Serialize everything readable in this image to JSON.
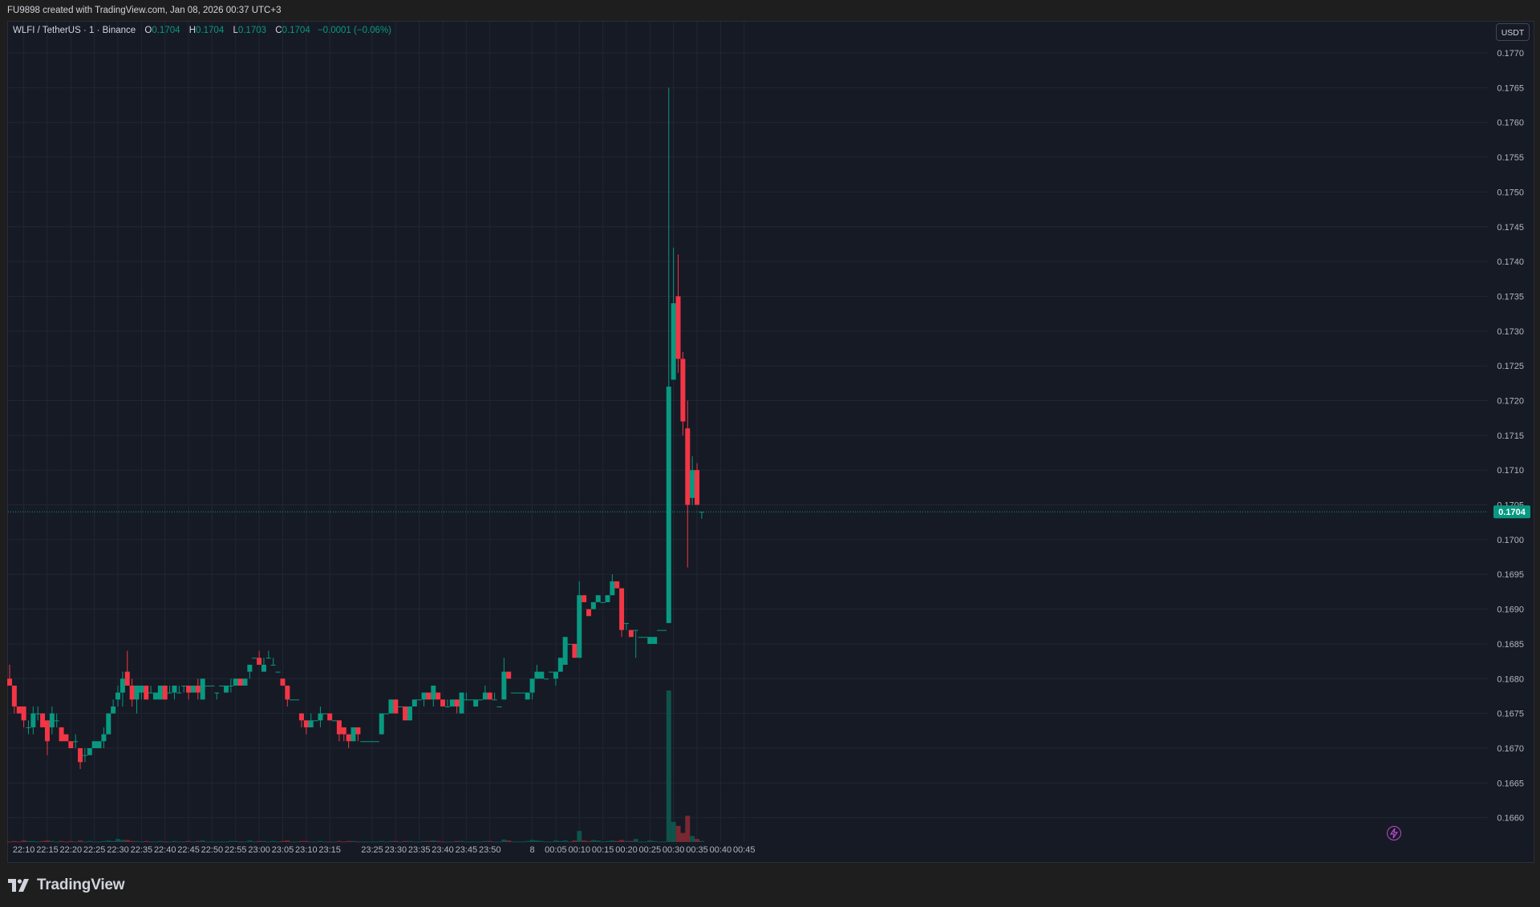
{
  "header": {
    "credit": "FU9898 created with TradingView.com, Jan 08, 2026 00:37 UTC+3"
  },
  "legend": {
    "symbol": "WLFI / TetherUS · 1 · Binance",
    "o_label": "O",
    "o_value": "0.1704",
    "h_label": "H",
    "h_value": "0.1704",
    "l_label": "L",
    "l_value": "0.1703",
    "c_label": "C",
    "c_value": "0.1704",
    "change": "−0.0001 (−0.06%)"
  },
  "currency_badge": "USDT",
  "brand": {
    "name": "TradingView",
    "logo_icon": "tradingview-logo-icon"
  },
  "colors": {
    "up": "#089981",
    "down": "#f23645",
    "background": "#161a25",
    "grid": "#222634",
    "axis_text": "#b2b5be"
  },
  "chart_data": {
    "type": "candlestick",
    "symbol": "WLFI / TetherUS",
    "interval": "1",
    "exchange": "Binance",
    "last_price": 0.1704,
    "last_price_label": "0.1704",
    "ylim": [
      0.16565,
      0.17745
    ],
    "y_ticks": [
      "0.1660",
      "0.1665",
      "0.1670",
      "0.1675",
      "0.1680",
      "0.1685",
      "0.1690",
      "0.1695",
      "0.1700",
      "0.1705",
      "0.1710",
      "0.1715",
      "0.1720",
      "0.1725",
      "0.1730",
      "0.1735",
      "0.1740",
      "0.1745",
      "0.1750",
      "0.1755",
      "0.1760",
      "0.1765",
      "0.1770"
    ],
    "x_ticks": [
      {
        "i": 3,
        "label": "22:10"
      },
      {
        "i": 8,
        "label": "22:15"
      },
      {
        "i": 13,
        "label": "22:20"
      },
      {
        "i": 18,
        "label": "22:25"
      },
      {
        "i": 23,
        "label": "22:30"
      },
      {
        "i": 28,
        "label": "22:35"
      },
      {
        "i": 33,
        "label": "22:40"
      },
      {
        "i": 38,
        "label": "22:45"
      },
      {
        "i": 43,
        "label": "22:50"
      },
      {
        "i": 48,
        "label": "22:55"
      },
      {
        "i": 53,
        "label": "23:00"
      },
      {
        "i": 58,
        "label": "23:05"
      },
      {
        "i": 63,
        "label": "23:10"
      },
      {
        "i": 68,
        "label": "23:15"
      },
      {
        "i": 77,
        "label": "23:25"
      },
      {
        "i": 82,
        "label": "23:30"
      },
      {
        "i": 87,
        "label": "23:35"
      },
      {
        "i": 92,
        "label": "23:40"
      },
      {
        "i": 97,
        "label": "23:45"
      },
      {
        "i": 102,
        "label": "23:50"
      },
      {
        "i": 111,
        "label": "8"
      },
      {
        "i": 116,
        "label": "00:05"
      },
      {
        "i": 121,
        "label": "00:10"
      },
      {
        "i": 126,
        "label": "00:15"
      },
      {
        "i": 131,
        "label": "00:20"
      },
      {
        "i": 136,
        "label": "00:25"
      },
      {
        "i": 141,
        "label": "00:30"
      },
      {
        "i": 146,
        "label": "00:35"
      },
      {
        "i": 151,
        "label": "00:40"
      },
      {
        "i": 156,
        "label": "00:45"
      }
    ],
    "candles": [
      [
        0.168,
        0.1682,
        0.1679,
        0.1679,
        0.1
      ],
      [
        0.1679,
        0.1679,
        0.1675,
        0.1676,
        0.2
      ],
      [
        0.1676,
        0.1676,
        0.1675,
        0.1675,
        0.1
      ],
      [
        0.1676,
        0.1676,
        0.1673,
        0.1674,
        0.3
      ],
      [
        0.1673,
        0.1674,
        0.1672,
        0.1673,
        0.2
      ],
      [
        0.1673,
        0.1676,
        0.1672,
        0.1675,
        0.2
      ],
      [
        0.1675,
        0.1676,
        0.1674,
        0.1675,
        0.1
      ],
      [
        0.1675,
        0.1675,
        0.1673,
        0.1673,
        0.2
      ],
      [
        0.1674,
        0.1674,
        0.1669,
        0.1671,
        0.3
      ],
      [
        0.1673,
        0.1676,
        0.1672,
        0.1675,
        0.2
      ],
      [
        0.1674,
        0.1675,
        0.1673,
        0.1674,
        0.1
      ],
      [
        0.1673,
        0.1673,
        0.1671,
        0.1671,
        0.2
      ],
      [
        0.1672,
        0.1672,
        0.1671,
        0.1671,
        0.1
      ],
      [
        0.1671,
        0.1671,
        0.167,
        0.167,
        0.2
      ],
      [
        0.1671,
        0.1672,
        0.167,
        0.1671,
        0.1
      ],
      [
        0.167,
        0.167,
        0.1667,
        0.1668,
        0.3
      ],
      [
        0.1669,
        0.167,
        0.1668,
        0.1669,
        0.1
      ],
      [
        0.1669,
        0.167,
        0.1669,
        0.167,
        0.2
      ],
      [
        0.167,
        0.1671,
        0.167,
        0.1671,
        0.1
      ],
      [
        0.167,
        0.1671,
        0.167,
        0.1671,
        0.1
      ],
      [
        0.1671,
        0.1673,
        0.167,
        0.1672,
        0.2
      ],
      [
        0.1672,
        0.1675,
        0.1672,
        0.1675,
        0.3
      ],
      [
        0.1675,
        0.1677,
        0.1675,
        0.1676,
        0.2
      ],
      [
        0.1677,
        0.1679,
        0.1676,
        0.1678,
        0.6
      ],
      [
        0.1678,
        0.1681,
        0.1676,
        0.168,
        0.4
      ],
      [
        0.1681,
        0.1684,
        0.1679,
        0.1679,
        0.4
      ],
      [
        0.1679,
        0.168,
        0.1676,
        0.1677,
        0.2
      ],
      [
        0.1677,
        0.1679,
        0.1675,
        0.1679,
        0.2
      ],
      [
        0.1678,
        0.1679,
        0.1677,
        0.1679,
        0.1
      ],
      [
        0.1679,
        0.1679,
        0.1677,
        0.1677,
        0.2
      ],
      [
        0.1678,
        0.1679,
        0.1678,
        0.1678,
        0.1
      ],
      [
        0.1677,
        0.1678,
        0.1677,
        0.1678,
        0.1
      ],
      [
        0.1677,
        0.1679,
        0.1677,
        0.1679,
        0.2
      ],
      [
        0.1679,
        0.1679,
        0.1677,
        0.1677,
        0.1
      ],
      [
        0.1678,
        0.1679,
        0.1678,
        0.1678,
        0.1
      ],
      [
        0.1678,
        0.1679,
        0.1677,
        0.1679,
        0.2
      ],
      [
        0.1678,
        0.1679,
        0.1678,
        0.1678,
        0.1
      ],
      [
        0.1679,
        0.1679,
        0.1678,
        0.1679,
        0.1
      ],
      [
        0.1679,
        0.1679,
        0.1677,
        0.1678,
        0.2
      ],
      [
        0.1678,
        0.1679,
        0.1678,
        0.1679,
        0.1
      ],
      [
        0.1679,
        0.168,
        0.1677,
        0.1678,
        0.2
      ],
      [
        0.1677,
        0.168,
        0.1677,
        0.168,
        0.3
      ],
      [
        0.1679,
        0.1679,
        0.1679,
        0.1679,
        0.1
      ],
      [
        0.1679,
        0.1679,
        0.1679,
        0.1679,
        0.1
      ],
      [
        0.1678,
        0.1678,
        0.1677,
        0.1678,
        0.1
      ],
      [
        0.1679,
        0.1679,
        0.1679,
        0.1679,
        0.1
      ],
      [
        0.1678,
        0.1679,
        0.1678,
        0.1679,
        0.1
      ],
      [
        0.1679,
        0.168,
        0.1678,
        0.1679,
        0.2
      ],
      [
        0.1679,
        0.168,
        0.1679,
        0.168,
        0.2
      ],
      [
        0.168,
        0.168,
        0.1679,
        0.1679,
        0.1
      ],
      [
        0.1679,
        0.168,
        0.1679,
        0.168,
        0.1
      ],
      [
        0.1681,
        0.1682,
        0.168,
        0.1682,
        0.3
      ],
      [
        0.1683,
        0.1683,
        0.1683,
        0.1683,
        0.1
      ],
      [
        0.1683,
        0.1684,
        0.1682,
        0.1682,
        0.2
      ],
      [
        0.1681,
        0.1683,
        0.1681,
        0.1682,
        0.2
      ],
      [
        0.1683,
        0.1684,
        0.1683,
        0.1683,
        0.1
      ],
      [
        0.1682,
        0.1683,
        0.1682,
        0.1682,
        0.2
      ],
      [
        0.1681,
        0.1681,
        0.1681,
        0.1681,
        0.1
      ],
      [
        0.168,
        0.168,
        0.1679,
        0.1679,
        0.2
      ],
      [
        0.1679,
        0.1679,
        0.1676,
        0.1677,
        0.3
      ],
      [
        0.1677,
        0.1677,
        0.1677,
        0.1677,
        0.1
      ],
      [
        0.1677,
        0.1677,
        0.1677,
        0.1677,
        0.1
      ],
      [
        0.1675,
        0.1675,
        0.1673,
        0.1674,
        0.2
      ],
      [
        0.1674,
        0.1674,
        0.1672,
        0.1673,
        0.2
      ],
      [
        0.1673,
        0.1675,
        0.1673,
        0.1674,
        0.1
      ],
      [
        0.1674,
        0.1674,
        0.1674,
        0.1674,
        0.1
      ],
      [
        0.1674,
        0.1676,
        0.1673,
        0.1675,
        0.2
      ],
      [
        0.1675,
        0.1675,
        0.1675,
        0.1675,
        0.1
      ],
      [
        0.1675,
        0.1675,
        0.1674,
        0.1674,
        0.1
      ],
      [
        0.1674,
        0.1674,
        0.1674,
        0.1674,
        0.1
      ],
      [
        0.1674,
        0.1674,
        0.1671,
        0.1672,
        0.2
      ],
      [
        0.1673,
        0.1673,
        0.1671,
        0.1672,
        0.1
      ],
      [
        0.1672,
        0.1672,
        0.167,
        0.1671,
        0.2
      ],
      [
        0.1671,
        0.1673,
        0.1671,
        0.1673,
        0.2
      ],
      [
        0.1673,
        0.1673,
        0.1671,
        0.1672,
        0.1
      ],
      [
        0.1671,
        0.1671,
        0.1671,
        0.1671,
        0.1
      ],
      [
        0.1671,
        0.1671,
        0.1671,
        0.1671,
        0.1
      ],
      [
        0.1671,
        0.1671,
        0.1671,
        0.1671,
        0.1
      ],
      [
        0.1671,
        0.1671,
        0.1671,
        0.1671,
        0.1
      ],
      [
        0.1672,
        0.1675,
        0.1672,
        0.1675,
        0.2
      ],
      [
        0.1675,
        0.1675,
        0.1675,
        0.1675,
        0.1
      ],
      [
        0.1675,
        0.1677,
        0.1675,
        0.1677,
        0.2
      ],
      [
        0.1677,
        0.1677,
        0.1675,
        0.1675,
        0.2
      ],
      [
        0.1676,
        0.1676,
        0.1676,
        0.1676,
        0.1
      ],
      [
        0.1676,
        0.1676,
        0.1674,
        0.1674,
        0.2
      ],
      [
        0.1674,
        0.1676,
        0.1674,
        0.1676,
        0.2
      ],
      [
        0.1676,
        0.1677,
        0.1676,
        0.1677,
        0.1
      ],
      [
        0.1677,
        0.1677,
        0.1677,
        0.1677,
        0.1
      ],
      [
        0.1677,
        0.1678,
        0.1676,
        0.1678,
        0.2
      ],
      [
        0.1678,
        0.1678,
        0.1677,
        0.1677,
        0.2
      ],
      [
        0.1677,
        0.1679,
        0.1676,
        0.1679,
        0.3
      ],
      [
        0.1678,
        0.1678,
        0.1677,
        0.1677,
        0.2
      ],
      [
        0.1677,
        0.1677,
        0.1676,
        0.1676,
        0.1
      ],
      [
        0.1676,
        0.1677,
        0.1676,
        0.1676,
        0.1
      ],
      [
        0.1676,
        0.1677,
        0.1676,
        0.1677,
        0.1
      ],
      [
        0.1677,
        0.1677,
        0.1675,
        0.1676,
        0.2
      ],
      [
        0.1675,
        0.1678,
        0.1675,
        0.1678,
        0.2
      ],
      [
        0.1677,
        0.1678,
        0.1677,
        0.1677,
        0.1
      ],
      [
        0.1677,
        0.1677,
        0.1677,
        0.1677,
        0.1
      ],
      [
        0.1676,
        0.1677,
        0.1676,
        0.1677,
        0.1
      ],
      [
        0.1677,
        0.1677,
        0.1677,
        0.1677,
        0.1
      ],
      [
        0.1677,
        0.1679,
        0.1677,
        0.1678,
        0.2
      ],
      [
        0.1678,
        0.1678,
        0.1677,
        0.1677,
        0.2
      ],
      [
        0.1677,
        0.1678,
        0.1677,
        0.1677,
        0.1
      ],
      [
        0.1676,
        0.1676,
        0.1676,
        0.1676,
        0.1
      ],
      [
        0.1677,
        0.1683,
        0.1677,
        0.1681,
        0.5
      ],
      [
        0.1681,
        0.1681,
        0.168,
        0.168,
        0.3
      ],
      [
        0.1678,
        0.1678,
        0.1678,
        0.1678,
        0.1
      ],
      [
        0.1678,
        0.1678,
        0.1678,
        0.1678,
        0.1
      ],
      [
        0.1678,
        0.1678,
        0.1678,
        0.1678,
        0.1
      ],
      [
        0.1677,
        0.1678,
        0.1677,
        0.1678,
        0.2
      ],
      [
        0.1678,
        0.168,
        0.1677,
        0.168,
        0.4
      ],
      [
        0.168,
        0.1682,
        0.168,
        0.1681,
        0.3
      ],
      [
        0.168,
        0.1681,
        0.168,
        0.1681,
        0.2
      ],
      [
        0.168,
        0.168,
        0.168,
        0.168,
        0.1
      ],
      [
        0.1681,
        0.1681,
        0.1681,
        0.1681,
        0.1
      ],
      [
        0.168,
        0.1681,
        0.1679,
        0.1681,
        0.3
      ],
      [
        0.1681,
        0.1683,
        0.1681,
        0.1683,
        0.2
      ],
      [
        0.1682,
        0.1686,
        0.1682,
        0.1686,
        0.3
      ],
      [
        0.1685,
        0.1685,
        0.1685,
        0.1685,
        0.1
      ],
      [
        0.1685,
        0.1685,
        0.1683,
        0.1683,
        0.3
      ],
      [
        0.1683,
        0.1694,
        0.1683,
        0.1692,
        2.2
      ],
      [
        0.1692,
        0.1692,
        0.1691,
        0.1691,
        0.3
      ],
      [
        0.169,
        0.169,
        0.1689,
        0.1689,
        0.2
      ],
      [
        0.169,
        0.1691,
        0.169,
        0.1691,
        0.4
      ],
      [
        0.1691,
        0.1692,
        0.1691,
        0.1692,
        0.3
      ],
      [
        0.1691,
        0.1691,
        0.1691,
        0.1691,
        0.1
      ],
      [
        0.1691,
        0.1692,
        0.1691,
        0.1692,
        0.2
      ],
      [
        0.1692,
        0.1695,
        0.1692,
        0.1694,
        0.3
      ],
      [
        0.1694,
        0.1694,
        0.1693,
        0.1693,
        0.2
      ],
      [
        0.1693,
        0.1693,
        0.1686,
        0.1687,
        0.4
      ],
      [
        0.1688,
        0.1688,
        0.1687,
        0.1688,
        0.2
      ],
      [
        0.1687,
        0.1687,
        0.1686,
        0.1686,
        0.2
      ],
      [
        0.1687,
        0.1687,
        0.1683,
        0.1687,
        0.6
      ],
      [
        0.1686,
        0.1686,
        0.1686,
        0.1686,
        0.1
      ],
      [
        0.1686,
        0.1686,
        0.1686,
        0.1686,
        0.1
      ],
      [
        0.1685,
        0.1686,
        0.1685,
        0.1686,
        0.3
      ],
      [
        0.1685,
        0.1686,
        0.1685,
        0.1686,
        0.2
      ],
      [
        0.1687,
        0.1687,
        0.1687,
        0.1687,
        0.1
      ],
      [
        0.1687,
        0.1687,
        0.1687,
        0.1687,
        0.1
      ],
      [
        0.1688,
        0.1765,
        0.1688,
        0.1722,
        30
      ],
      [
        0.1723,
        0.1742,
        0.1723,
        0.1734,
        4
      ],
      [
        0.1735,
        0.1741,
        0.1724,
        0.1726,
        3.2
      ],
      [
        0.1726,
        0.1727,
        0.1715,
        0.1717,
        1.8
      ],
      [
        0.1716,
        0.172,
        0.1696,
        0.1705,
        5.2
      ],
      [
        0.1706,
        0.1712,
        0.1705,
        0.171,
        1.2
      ],
      [
        0.171,
        0.1711,
        0.1705,
        0.1705,
        0.6
      ],
      [
        0.1704,
        0.1704,
        0.1703,
        0.1704,
        0.2
      ]
    ]
  }
}
